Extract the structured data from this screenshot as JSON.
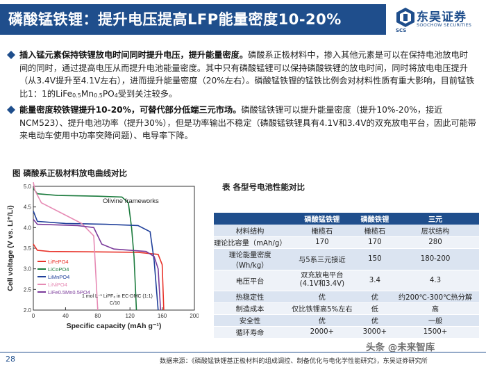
{
  "header": {
    "title": "磷酸锰铁锂：提升电压提高LFP能量密度10-20%",
    "logo_cn": "东吴证券",
    "logo_en": "SOOCHOW SECURITIES",
    "logo_abbr": "SCS"
  },
  "bullets": [
    {
      "bold": "插入锰元素保持铁锂放电时间同时提升电压，提升能量密度。",
      "text_a": "磷酸系正极材料中，掺入其他元素是可以在保持电池放电时间的同时，通过提高电压从而提升电池能量密度。其中只有磷酸锰锂可以保持磷酸铁锂的放电时间，同时将放电电压提升（从3.4V提升至4.1V左右），进而提升能量密度（20%左右）。磷酸锰铁锂的锰铁比例会对材料性质有重大影响，目前锰铁比1：1的LiFe",
      "sub1": "0.5",
      "mid": "Mn",
      "sub2": "0.5",
      "text_b": "PO",
      "sub3": "4",
      "text_c": "受到关注较多。"
    },
    {
      "bold": "能量密度较铁锂提升10-20%，可替代部分低端三元市场。",
      "text_a": "磷酸锰铁锂可以提升能量密度（提升10%-20%，接近NCM523）、提升电池功率（提升30%），但是功率输出不稳定（磷酸锰铁锂具有4.1V和3.4V的双充放电平台，因此可能带来电动车使用中功率突降问题）、电导率下降。"
    }
  ],
  "figure": {
    "caption": "图  磷酸系正极材料放电曲线对比",
    "annotation_title": "Olivine frameworks",
    "annotation_cond_1": "1 mol L⁻¹ LiPF₆ in EC-DMC (1:1)",
    "annotation_cond_2": "C/10"
  },
  "chart_data": {
    "type": "line",
    "xlabel": "Specific capacity (mAh g⁻¹)",
    "ylabel": "Cell voltage (V vs. Li⁺/Li)",
    "xlim": [
      0,
      200
    ],
    "ylim": [
      2.0,
      5.0
    ],
    "x_ticks": [
      "0",
      "40",
      "80",
      "120",
      "160",
      "200"
    ],
    "y_ticks": [
      "2.0",
      "2.5",
      "3.0",
      "3.5",
      "4.0",
      "4.5",
      "5.0"
    ],
    "series": [
      {
        "name": "LiFePO4",
        "color": "#e8332a",
        "points": [
          [
            0,
            3.6
          ],
          [
            5,
            3.45
          ],
          [
            20,
            3.42
          ],
          [
            80,
            3.41
          ],
          [
            130,
            3.4
          ],
          [
            155,
            3.35
          ],
          [
            160,
            3.1
          ],
          [
            162,
            2.0
          ]
        ]
      },
      {
        "name": "LiCoPO4",
        "color": "#1a7a3c",
        "points": [
          [
            0,
            4.95
          ],
          [
            5,
            4.82
          ],
          [
            30,
            4.78
          ],
          [
            80,
            4.76
          ],
          [
            110,
            4.74
          ],
          [
            118,
            4.6
          ],
          [
            122,
            4.0
          ],
          [
            125,
            3.3
          ],
          [
            128,
            2.0
          ]
        ]
      },
      {
        "name": "LiMnPO4",
        "color": "#1f3f9a",
        "points": [
          [
            0,
            4.4
          ],
          [
            5,
            4.15
          ],
          [
            40,
            4.1
          ],
          [
            90,
            4.08
          ],
          [
            130,
            4.05
          ],
          [
            145,
            3.9
          ],
          [
            150,
            3.2
          ],
          [
            155,
            2.0
          ]
        ]
      },
      {
        "name": "LiNiPO4",
        "color": "#e68ab4",
        "points": [
          [
            0,
            5.1
          ],
          [
            2,
            4.9
          ],
          [
            10,
            4.6
          ],
          [
            40,
            4.3
          ],
          [
            60,
            4.1
          ],
          [
            75,
            3.8
          ],
          [
            80,
            2.0
          ]
        ]
      },
      {
        "name": "LiFe0.5Mn0.5PO4",
        "color": "#7a3a9a",
        "points": [
          [
            0,
            4.2
          ],
          [
            5,
            4.08
          ],
          [
            55,
            4.05
          ],
          [
            75,
            4.0
          ],
          [
            85,
            3.6
          ],
          [
            100,
            3.48
          ],
          [
            140,
            3.42
          ],
          [
            150,
            3.3
          ],
          [
            155,
            3.0
          ],
          [
            158,
            2.0
          ]
        ]
      }
    ]
  },
  "table": {
    "caption": "表 各型号电池性能对比",
    "headers": [
      "",
      "磷酸锰铁锂",
      "磷酸铁锂",
      "三元"
    ],
    "rows": [
      [
        "材料结构",
        "橄榄石",
        "橄榄石",
        "层状结构"
      ],
      [
        "理论比容量（mAh/g）",
        "170",
        "170",
        "280"
      ],
      [
        "理论能量密度（Wh/kg）",
        "与5系三元接近",
        "150",
        "180-200"
      ],
      [
        "电压平台",
        "双充放电平台\n(4.1V和3.4V)",
        "3.4",
        "4.3"
      ],
      [
        "热稳定性",
        "优",
        "优",
        "约200℃-300℃热分解"
      ],
      [
        "制造成本",
        "仅比铁锂高5%左右",
        "低",
        "高"
      ],
      [
        "安全性",
        "优",
        "优",
        "一般"
      ],
      [
        "循环寿命",
        "2000+",
        "3000+",
        "1500+"
      ]
    ]
  },
  "footer": {
    "page": "28",
    "source": "数据来源：《磷酸锰铁锂基正极材料的组成调控、制备优化与电化学性能研究》，东吴证券研究所",
    "watermark": "头条 @未来智库"
  },
  "colors": {
    "brand": "#1f4e8c",
    "row_odd": "#dbe4f1",
    "row_even": "#eef2f8"
  }
}
